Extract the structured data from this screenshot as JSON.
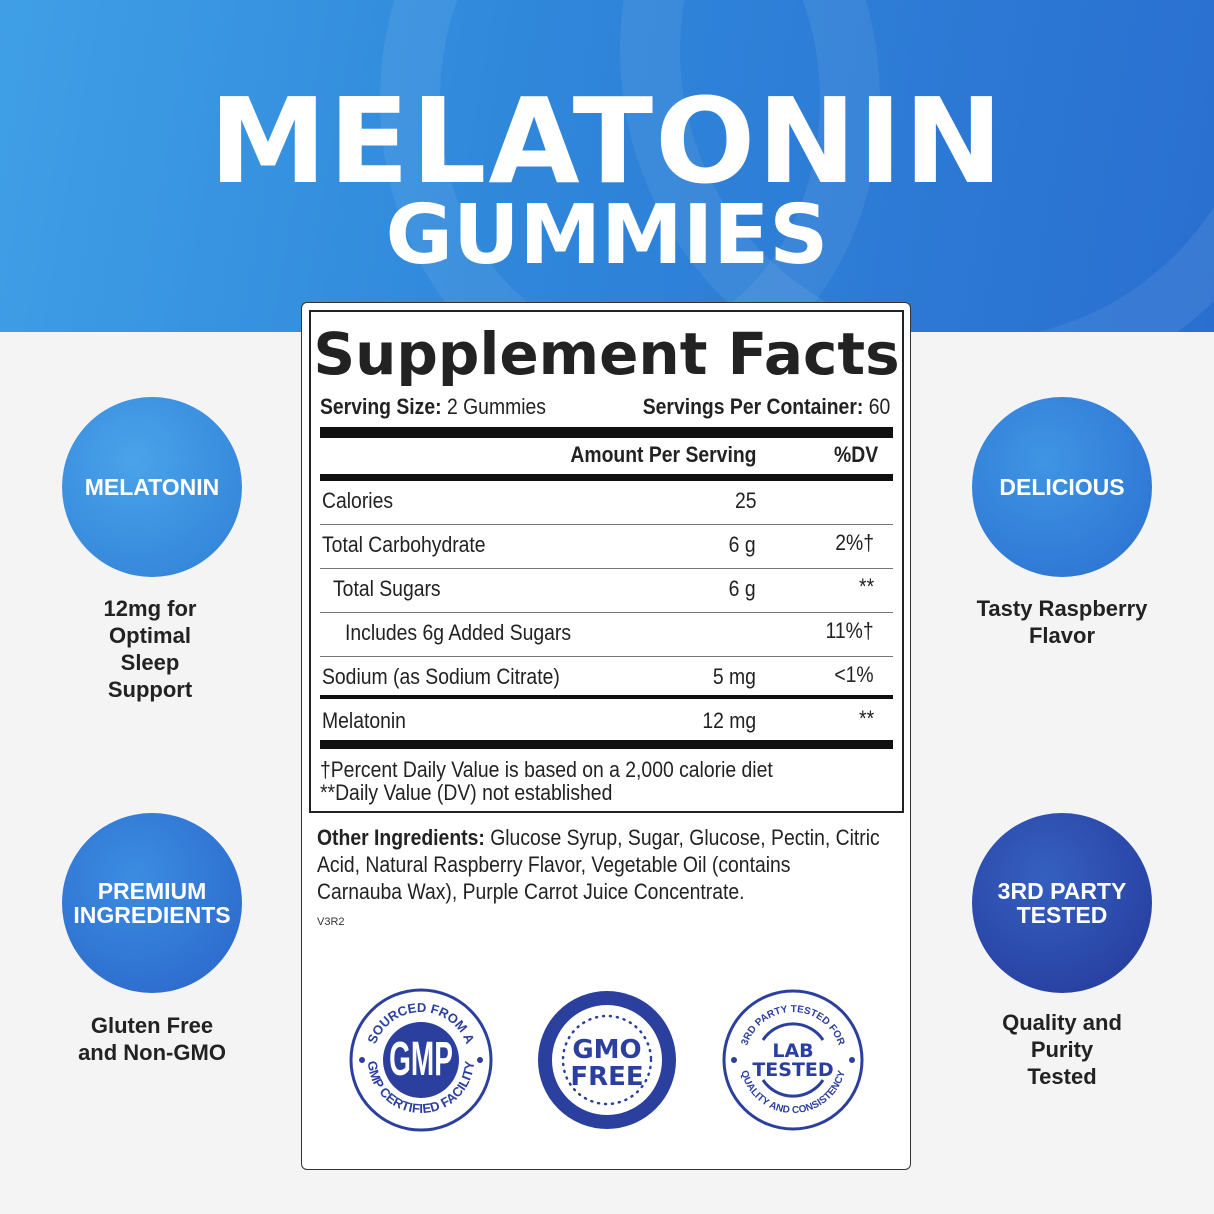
{
  "header": {
    "title": "MELATONIN",
    "subtitle": "GUMMIES"
  },
  "features": [
    {
      "badge": "MELATONIN",
      "caption": "12mg for Optimal Sleep Support"
    },
    {
      "badge": "DELICIOUS",
      "caption": "Tasty Raspberry Flavor"
    },
    {
      "badge": "PREMIUM INGREDIENTS",
      "caption": "Gluten Free and Non-GMO"
    },
    {
      "badge": "3RD PARTY TESTED",
      "caption": "Quality and Purity Tested"
    }
  ],
  "facts": {
    "title": "Supplement Facts",
    "serving_size_label": "Serving Size:",
    "serving_size": "2 Gummies",
    "servings_label": "Servings Per Container:",
    "servings": "60",
    "amount_header": "Amount Per Serving",
    "dv_header": "%DV",
    "rows": [
      {
        "name": "Calories",
        "amount": "25",
        "dv": ""
      },
      {
        "name": "Total Carbohydrate",
        "amount": "6 g",
        "dv": "2%†"
      },
      {
        "name": "Total Sugars",
        "amount": "6 g",
        "dv": "**"
      },
      {
        "name": "Includes 6g Added Sugars",
        "amount": "",
        "dv": "11%†"
      },
      {
        "name": "Sodium (as Sodium Citrate)",
        "amount": "5 mg",
        "dv": "<1%"
      },
      {
        "name": "Melatonin",
        "amount": "12 mg",
        "dv": "**"
      }
    ],
    "footnote1": "†Percent Daily Value is based on a 2,000 calorie diet",
    "footnote2": "**Daily Value (DV) not established"
  },
  "other": {
    "label": "Other Ingredients:",
    "text": "Glucose Syrup, Sugar, Glucose, Pectin, Citric Acid, Natural Raspberry Flavor, Vegetable Oil (contains Carnauba Wax), Purple Carrot Juice Concentrate.",
    "code": "V3R2"
  },
  "seals": {
    "gmp": {
      "center": "GMP",
      "top": "SOURCED FROM A",
      "bottom": "GMP CERTIFIED FACILITY"
    },
    "gmo": {
      "line1": "GMO",
      "line2": "FREE"
    },
    "lab": {
      "line1": "LAB",
      "line2": "TESTED",
      "top": "3RD PARTY TESTED FOR",
      "bottom": "QUALITY AND CONSISTENCY"
    }
  },
  "colors": {
    "brand_blue": "#2f86da",
    "seal_blue": "#2b3f9e"
  }
}
